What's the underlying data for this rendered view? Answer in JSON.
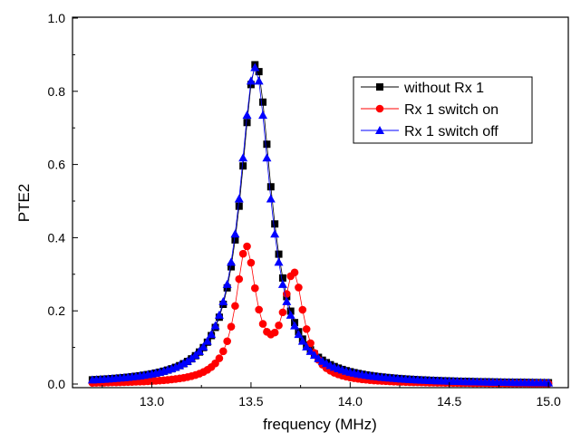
{
  "chart_data": {
    "type": "scatter",
    "xlabel": "frequency (MHz)",
    "ylabel": "PTE2",
    "xlim": [
      12.6,
      15.1
    ],
    "ylim": [
      0.0,
      1.0
    ],
    "x_ticks": [
      "13.0",
      "13.5",
      "14.0",
      "14.5",
      "15.0"
    ],
    "y_ticks": [
      "0.0",
      "0.2",
      "0.4",
      "0.6",
      "0.8",
      "1.0"
    ],
    "x_range": [
      12.7,
      15.0,
      0.02
    ],
    "legend_position": "top-right",
    "grid": false,
    "series": [
      {
        "name": "without Rx 1",
        "color": "#000000",
        "marker": "square",
        "peaks": [
          {
            "center": 13.525,
            "height": 0.875,
            "hwhm": 0.095
          }
        ]
      },
      {
        "name": "Rx 1 switch on",
        "color": "#ff0000",
        "marker": "circle",
        "peaks": [
          {
            "center": 13.475,
            "height": 0.36,
            "hwhm": 0.062
          },
          {
            "center": 13.715,
            "height": 0.285,
            "hwhm": 0.062
          }
        ]
      },
      {
        "name": "Rx 1 switch off",
        "color": "#0000ff",
        "marker": "triangle",
        "peaks": [
          {
            "center": 13.52,
            "height": 0.865,
            "hwhm": 0.095
          }
        ]
      }
    ]
  }
}
